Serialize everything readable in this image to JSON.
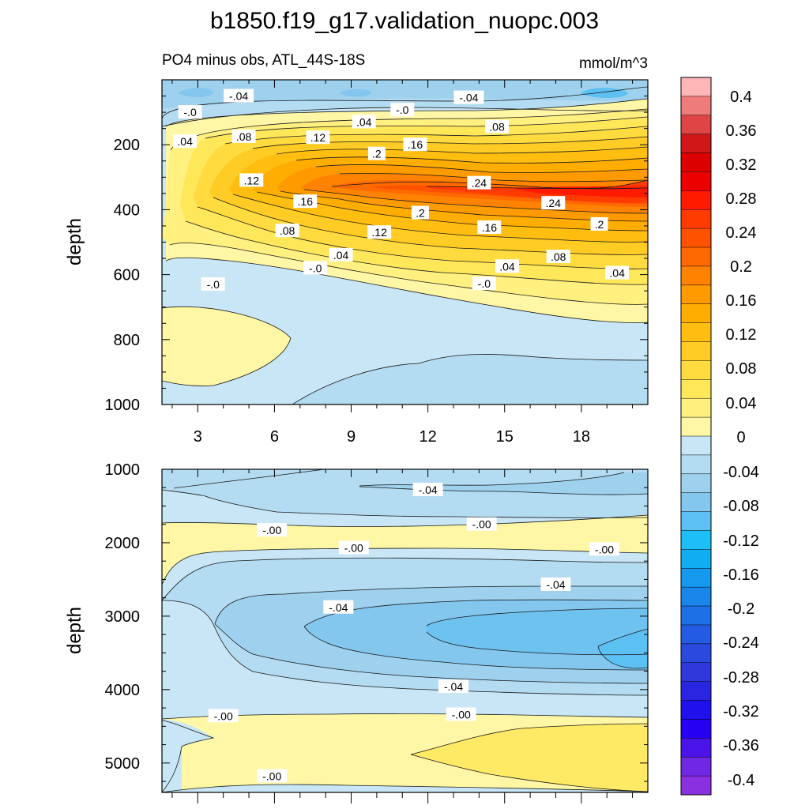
{
  "chart_data": {
    "type": "contour",
    "title": "b1850.f19_g17.validation_nuopc.003",
    "subtitle_left": "PO4 minus obs, ATL_44S-18S",
    "subtitle_right": "mmol/m^3",
    "panels": [
      {
        "name": "upper",
        "ylabel": "depth",
        "ylim": [
          0,
          1000
        ],
        "xlim": [
          1.6,
          20.6
        ],
        "y_ticks": [
          200,
          400,
          600,
          800,
          1000
        ],
        "x_ticks": [
          3,
          6,
          9,
          12,
          15,
          18
        ],
        "contour_labels": [
          {
            "text": "-.04",
            "x": 4.6,
            "y": 50
          },
          {
            "text": "-.04",
            "x": 13.6,
            "y": 55
          },
          {
            "text": "-.0",
            "x": 2.7,
            "y": 100
          },
          {
            "text": "-.0",
            "x": 11.0,
            "y": 93
          },
          {
            "text": ".04",
            "x": 9.5,
            "y": 130
          },
          {
            "text": ".08",
            "x": 14.7,
            "y": 145
          },
          {
            "text": ".04",
            "x": 2.5,
            "y": 190
          },
          {
            "text": ".08",
            "x": 4.8,
            "y": 175
          },
          {
            "text": ".12",
            "x": 7.7,
            "y": 178
          },
          {
            "text": ".16",
            "x": 11.5,
            "y": 200
          },
          {
            "text": ".2",
            "x": 10.0,
            "y": 228
          },
          {
            "text": ".12",
            "x": 5.1,
            "y": 310
          },
          {
            "text": ".24",
            "x": 14.0,
            "y": 318
          },
          {
            "text": ".16",
            "x": 7.2,
            "y": 375
          },
          {
            "text": ".24",
            "x": 16.9,
            "y": 380
          },
          {
            "text": ".2",
            "x": 11.7,
            "y": 410
          },
          {
            "text": ".2",
            "x": 18.7,
            "y": 445
          },
          {
            "text": ".16",
            "x": 14.4,
            "y": 455
          },
          {
            "text": ".08",
            "x": 6.5,
            "y": 465
          },
          {
            "text": ".12",
            "x": 10.1,
            "y": 470
          },
          {
            "text": ".04",
            "x": 8.6,
            "y": 540
          },
          {
            "text": ".08",
            "x": 17.1,
            "y": 545
          },
          {
            "text": "-.0",
            "x": 7.6,
            "y": 580
          },
          {
            "text": ".04",
            "x": 15.1,
            "y": 575
          },
          {
            "text": ".04",
            "x": 19.4,
            "y": 595
          },
          {
            "text": "-.0",
            "x": 3.6,
            "y": 630
          },
          {
            "text": "-.0",
            "x": 14.2,
            "y": 628
          }
        ]
      },
      {
        "name": "lower",
        "ylabel": "depth",
        "ylim": [
          1000,
          5400
        ],
        "xlim": [
          1.6,
          20.6
        ],
        "y_ticks": [
          1000,
          2000,
          3000,
          4000,
          5000
        ],
        "contour_labels": [
          {
            "text": "-.04",
            "x": 12.0,
            "y": 1280
          },
          {
            "text": "-.00",
            "x": 5.9,
            "y": 1830
          },
          {
            "text": "-.00",
            "x": 14.1,
            "y": 1750
          },
          {
            "text": "-.00",
            "x": 9.1,
            "y": 2070
          },
          {
            "text": "-.00",
            "x": 18.9,
            "y": 2090
          },
          {
            "text": "-.04",
            "x": 17.0,
            "y": 2570
          },
          {
            "text": "-.04",
            "x": 8.5,
            "y": 2880
          },
          {
            "text": "-.04",
            "x": 13.0,
            "y": 3960
          },
          {
            "text": "-.00",
            "x": 4.0,
            "y": 4360
          },
          {
            "text": "-.00",
            "x": 13.3,
            "y": 4340
          },
          {
            "text": "-.00",
            "x": 5.9,
            "y": 5180
          }
        ]
      }
    ],
    "colorbar": {
      "labels": [
        "0.4",
        "0.36",
        "0.32",
        "0.28",
        "0.24",
        "0.2",
        "0.16",
        "0.12",
        "0.08",
        "0.04",
        "0",
        "-0.04",
        "-0.08",
        "-0.12",
        "-0.16",
        "-0.2",
        "-0.24",
        "-0.28",
        "-0.32",
        "-0.36",
        "-0.4"
      ],
      "colors": [
        "#ffb6b6",
        "#f07b7b",
        "#e04545",
        "#d01818",
        "#dc0000",
        "#ec0000",
        "#ff1a00",
        "#ff3b00",
        "#ff5200",
        "#ff6a00",
        "#ff8300",
        "#ff9a00",
        "#ffad00",
        "#ffbe10",
        "#ffcc25",
        "#ffdb40",
        "#ffe75a",
        "#fff080",
        "#fff7a6",
        "#c8e6f5",
        "#b3dbf1",
        "#9ed1ee",
        "#83c6ee",
        "#5cc0f2",
        "#1ebff8",
        "#10adf3",
        "#1499ee",
        "#1a85ea",
        "#1e70e6",
        "#235ce3",
        "#2a49df",
        "#2f39db",
        "#2a25e0",
        "#2010ec",
        "#2500f3",
        "#4a14e8",
        "#7028e4",
        "#8a30e0"
      ]
    }
  }
}
